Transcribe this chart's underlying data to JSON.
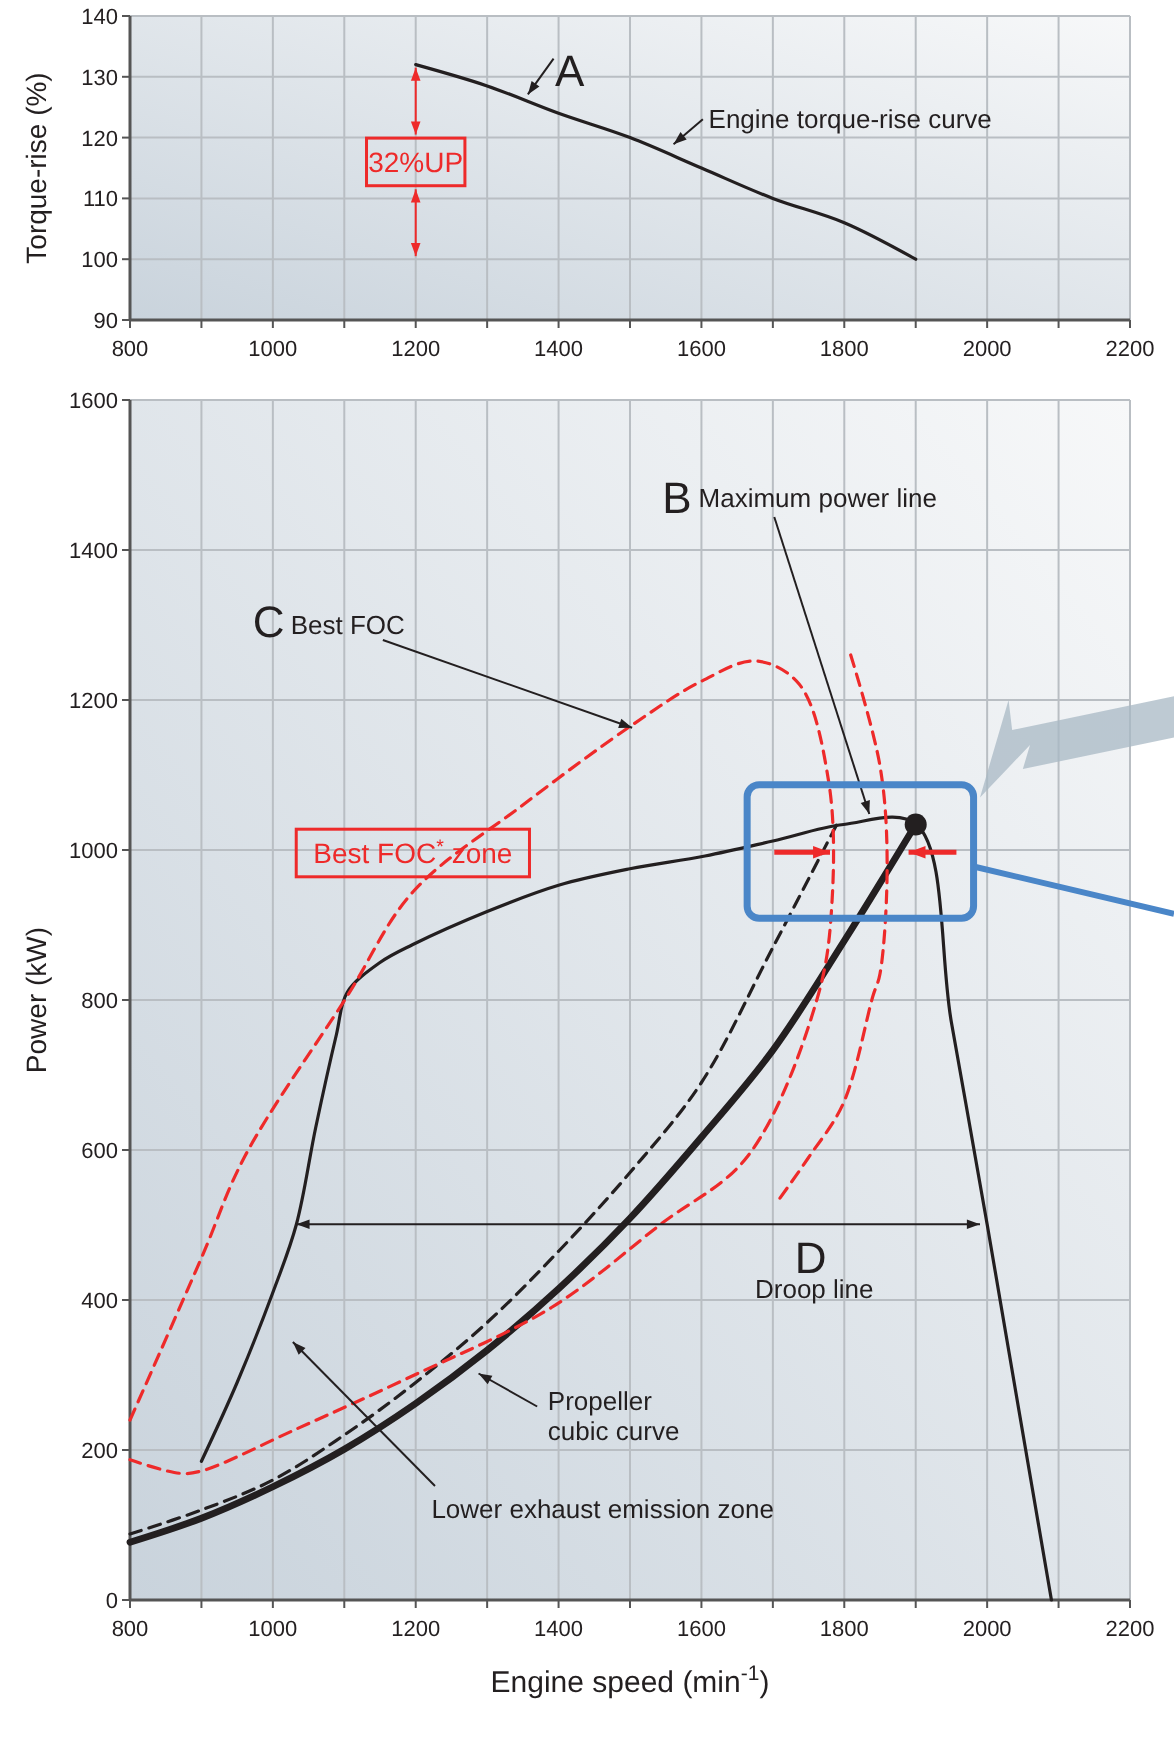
{
  "chart_data": [
    {
      "type": "line",
      "ylabel": "Torque-rise (%)",
      "xlim": [
        800,
        2200
      ],
      "ylim": [
        90,
        140
      ],
      "xticks": [
        800,
        {
          "value": 900,
          "label": null
        },
        1000,
        {
          "value": 1100,
          "label": null
        },
        1200,
        {
          "value": 1300,
          "label": null
        },
        1400,
        {
          "value": 1500,
          "label": null
        },
        1600,
        {
          "value": 1700,
          "label": null
        },
        1800,
        {
          "value": 1900,
          "label": null
        },
        2000,
        {
          "value": 2100,
          "label": null
        },
        2200
      ],
      "yticks": [
        90,
        100,
        110,
        120,
        130,
        140
      ],
      "grid": true,
      "line_style": "solid",
      "x": [
        1200,
        1300,
        1400,
        1500,
        1600,
        1700,
        1800,
        1900
      ],
      "series": [
        {
          "color": "#231f20",
          "values": [
            132,
            128.5,
            124,
            120,
            115,
            110,
            106,
            100
          ]
        }
      ],
      "annotations": [
        "A",
        "Engine torque-rise curve",
        "32%UP"
      ]
    },
    {
      "type": "line",
      "xlabel": "Engine speed (min$^{-1}$)",
      "ylabel": "Power (kW)",
      "xlim": [
        800,
        2200
      ],
      "ylim": [
        0,
        1600
      ],
      "xticks": [
        800,
        {
          "value": 900,
          "label": null
        },
        1000,
        {
          "value": 1100,
          "label": null
        },
        1200,
        {
          "value": 1300,
          "label": null
        },
        1400,
        {
          "value": 1500,
          "label": null
        },
        1600,
        {
          "value": 1700,
          "label": null
        },
        1800,
        {
          "value": 1900,
          "label": null
        },
        2000,
        {
          "value": 2100,
          "label": null
        },
        2200
      ],
      "yticks": [
        0,
        200,
        400,
        600,
        800,
        1000,
        1200,
        1400,
        1600
      ],
      "grid": true,
      "series": [
        {
          "color": "#231f20",
          "line_style": "solid",
          "x": [
            900,
            950,
            1000,
            1033,
            1060,
            1089,
            1104,
            1150,
            1196,
            1300,
            1400,
            1500,
            1605,
            1700,
            1799,
            1901,
            1950,
            2000,
            2045,
            2090
          ],
          "values": [
            185,
            290,
            410,
            501,
            630,
            754,
            810,
            850,
            874,
            918,
            953,
            975,
            992,
            1012,
            1034,
            1034,
            770,
            501,
            250,
            0
          ]
        },
        {
          "color": "#231f20",
          "line_style": "solid",
          "x": [
            800,
            900,
            1000,
            1100,
            1200,
            1300,
            1400,
            1500,
            1600,
            1700,
            1800,
            1900
          ],
          "values": [
            77,
            109,
            151,
            201,
            262,
            333,
            415,
            509,
            617,
            733,
            879,
            1034
          ]
        },
        {
          "color": "#231f20",
          "line_style": "dashed",
          "x": [
            800,
            900,
            1000,
            1100,
            1200,
            1300,
            1400,
            1500,
            1600,
            1700,
            1790
          ],
          "values": [
            88,
            120,
            160,
            220,
            290,
            370,
            465,
            570,
            690,
            870,
            1035
          ]
        },
        {
          "color": "#ee2a2a",
          "line_style": "dashed",
          "x": [
            800,
            900,
            961,
            1104,
            1196,
            1350,
            1502,
            1600,
            1676,
            1737,
            1778,
            1783,
            1763,
            1665,
            1543,
            1390,
            1196,
            1033,
            900,
            869,
            800
          ],
          "values": [
            240,
            456,
            592,
            805,
            944,
            1060,
            1166,
            1225,
            1252,
            1221,
            1092,
            934,
            805,
            592,
            501,
            390,
            299,
            228,
            172,
            169,
            187
          ]
        },
        {
          "color": "#ee2a2a",
          "line_style": "dashed",
          "x": [
            1809,
            1850,
            1860,
            1850,
            1840,
            1799,
            1750,
            1707
          ],
          "values": [
            1260,
            1112,
            983,
            835,
            805,
            663,
            590,
            532
          ]
        },
        {
          "type": "scatter",
          "color": "#231f20",
          "marker": "circle",
          "x": [
            1900
          ],
          "values": [
            1034
          ]
        }
      ],
      "annotations": [
        "B",
        {
          "text": "Maximum power line",
          "x": 1835,
          "y": 1048
        },
        "C",
        {
          "text": "Best FOC",
          "x": 1503,
          "y": 1163
        },
        "Best FOC$^{*}$ zone",
        "D",
        "Droop line",
        "Propeller cubic curve",
        "Lower exhaust emission zone"
      ]
    }
  ]
}
